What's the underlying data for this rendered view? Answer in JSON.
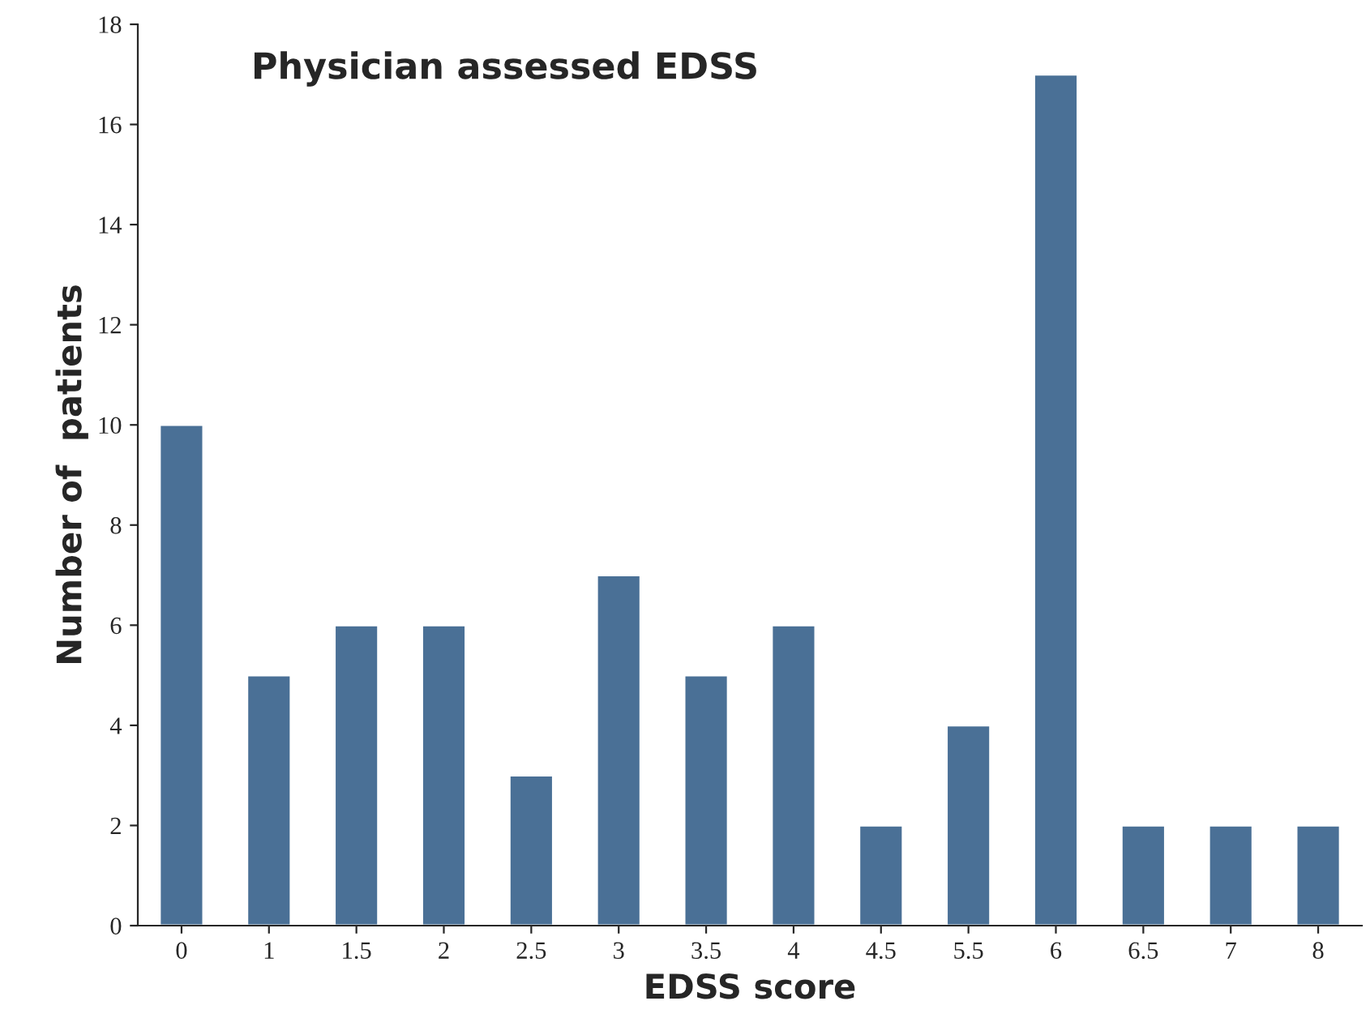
{
  "chart_data": {
    "type": "bar",
    "title": "Physician assessed EDSS",
    "xlabel": "EDSS score",
    "ylabel": "Number of  patients",
    "categories": [
      "0",
      "1",
      "1.5",
      "2",
      "2.5",
      "3",
      "3.5",
      "4",
      "4.5",
      "5.5",
      "6",
      "6.5",
      "7",
      "8"
    ],
    "values": [
      10,
      5,
      6,
      6,
      3,
      7,
      5,
      6,
      2,
      4,
      17,
      2,
      2,
      2
    ],
    "color": "#4a7096",
    "ylim": [
      0,
      18
    ],
    "yticks": [
      0,
      2,
      4,
      6,
      8,
      10,
      12,
      14,
      16,
      18
    ],
    "grid": false
  }
}
